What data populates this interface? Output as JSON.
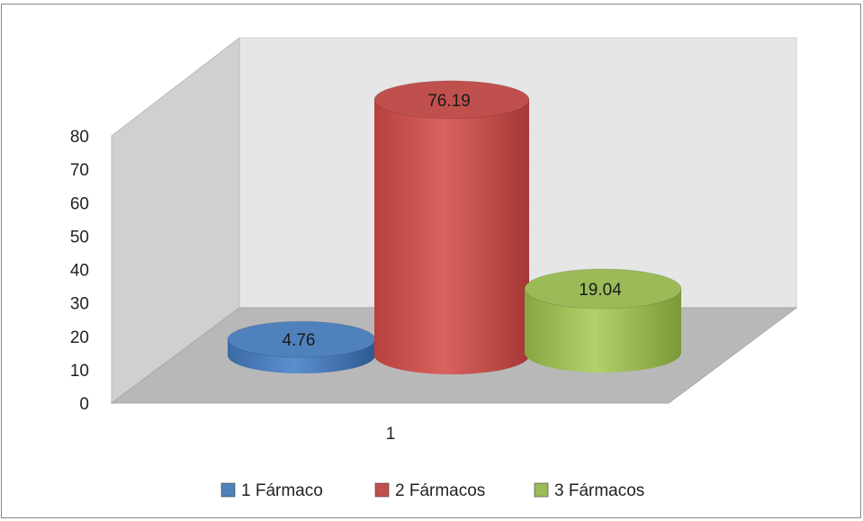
{
  "chart_data": {
    "type": "bar",
    "style": "3d-cylinder",
    "categories": [
      "1"
    ],
    "series": [
      {
        "name": "1 Fármaco",
        "values": [
          4.76
        ],
        "label": "4.76",
        "color": "#4f81bd"
      },
      {
        "name": "2 Fármacos",
        "values": [
          76.19
        ],
        "label": "76.19",
        "color": "#c0504d"
      },
      {
        "name": "3 Fármacos",
        "values": [
          19.04
        ],
        "label": "19.04",
        "color": "#9bbb59"
      }
    ],
    "title": "",
    "xlabel": "",
    "ylabel": "",
    "ylim": [
      0,
      80
    ],
    "yticks": [
      "0",
      "10",
      "20",
      "30",
      "40",
      "50",
      "60",
      "70",
      "80"
    ],
    "grid": false,
    "legend": "bottom"
  }
}
